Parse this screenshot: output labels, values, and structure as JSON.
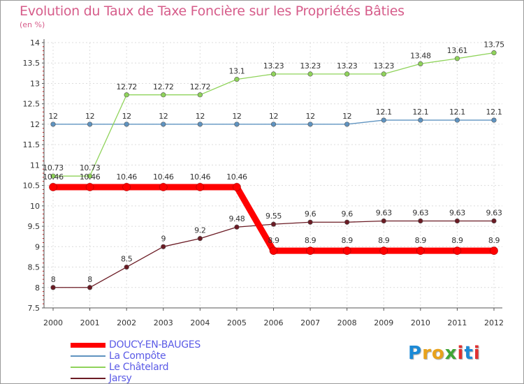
{
  "chart_data": {
    "type": "line",
    "title": "Evolution du Taux de Taxe Foncière sur les Propriétés Bâties",
    "ylabel": "(en %)",
    "xlabel": "",
    "x": [
      "2000",
      "2001",
      "2002",
      "2003",
      "2004",
      "2005",
      "2006",
      "2007",
      "2008",
      "2009",
      "2010",
      "2011",
      "2012"
    ],
    "ylim": [
      7.5,
      14
    ],
    "yticks": [
      "7.5",
      "8",
      "8.5",
      "9",
      "9.5",
      "10",
      "10.5",
      "11",
      "11.5",
      "12",
      "12.5",
      "13",
      "13.5",
      "14"
    ],
    "grid": true,
    "series": [
      {
        "name": "DOUCY-EN-BAUGES",
        "color": "#ff0000",
        "values": [
          10.46,
          10.46,
          10.46,
          10.46,
          10.46,
          10.46,
          8.9,
          8.9,
          8.9,
          8.9,
          8.9,
          8.9,
          8.9
        ],
        "labels": [
          "10.46",
          "10.46",
          "10.46",
          "10.46",
          "10.46",
          "10.46",
          "8.9",
          "8.9",
          "8.9",
          "8.9",
          "8.9",
          "8.9",
          "8.9"
        ]
      },
      {
        "name": "La Compôte",
        "color": "#5f93c0",
        "values": [
          12,
          12,
          12,
          12,
          12,
          12,
          12,
          12,
          12,
          12.1,
          12.1,
          12.1,
          12.1
        ],
        "labels": [
          "12",
          "12",
          "12",
          "12",
          "12",
          "12",
          "12",
          "12",
          "12",
          "12.1",
          "12.1",
          "12.1",
          "12.1"
        ]
      },
      {
        "name": "Le Châtelard",
        "color": "#8fd35a",
        "values": [
          10.73,
          10.73,
          12.72,
          12.72,
          12.72,
          13.1,
          13.23,
          13.23,
          13.23,
          13.23,
          13.48,
          13.61,
          13.75
        ],
        "labels": [
          "10.73",
          "10.73",
          "12.72",
          "12.72",
          "12.72",
          "13.1",
          "13.23",
          "13.23",
          "13.23",
          "13.23",
          "13.48",
          "13.61",
          "13.75"
        ]
      },
      {
        "name": "Jarsy",
        "color": "#6b1b24",
        "values": [
          8,
          8,
          8.5,
          9,
          9.2,
          9.48,
          9.55,
          9.6,
          9.6,
          9.63,
          9.63,
          9.63,
          9.63
        ],
        "labels": [
          "8",
          "8",
          "8.5",
          "9",
          "9.2",
          "9.48",
          "9.55",
          "9.6",
          "9.6",
          "9.63",
          "9.63",
          "9.63",
          "9.63"
        ]
      }
    ],
    "legend_position": "bottom-left"
  },
  "logo": {
    "text": "Proxiti",
    "letter_colors": [
      "#1c8ad6",
      "#e8a21c",
      "#e8a21c",
      "#3fa535",
      "#e03030",
      "#1c8ad6",
      "#e03030"
    ]
  }
}
